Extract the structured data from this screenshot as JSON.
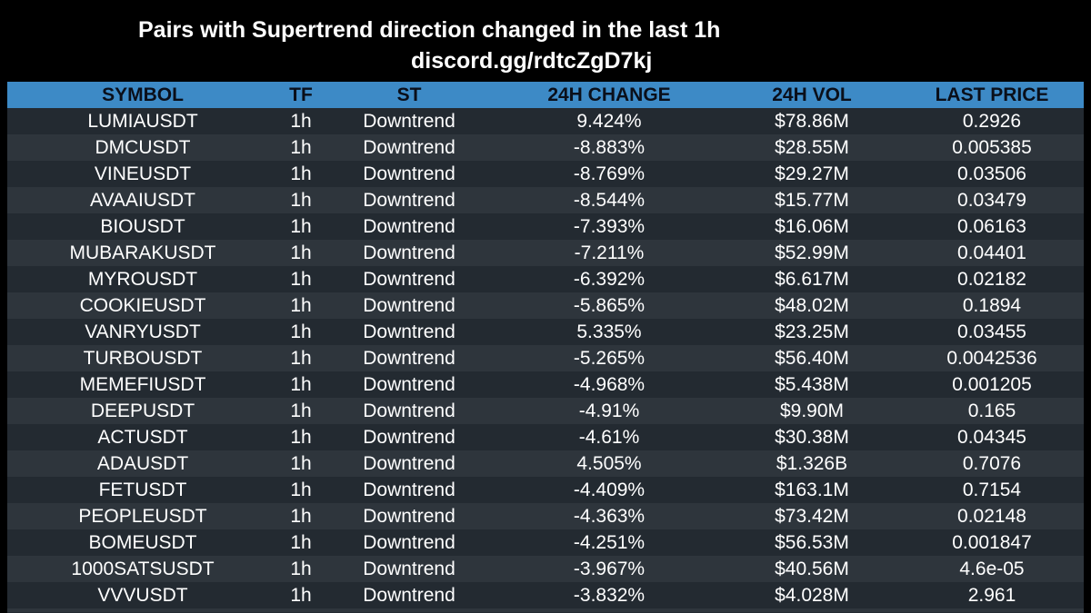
{
  "title": {
    "line1": "Pairs with Supertrend direction changed in the last 1h",
    "line2": "discord.gg/rdtcZgD7kj"
  },
  "colors": {
    "background": "#000000",
    "header_bg": "#3d8ac6",
    "row_even_bg": "#2e353c",
    "row_odd_bg": "#232a31",
    "text": "#ffffff"
  },
  "table": {
    "columns": [
      "SYMBOL",
      "TF",
      "ST",
      "24H CHANGE",
      "24H VOL",
      "LAST PRICE"
    ],
    "rows": [
      [
        "LUMIAUSDT",
        "1h",
        "Downtrend",
        "9.424%",
        "$78.86M",
        "0.2926"
      ],
      [
        "DMCUSDT",
        "1h",
        "Downtrend",
        "-8.883%",
        "$28.55M",
        "0.005385"
      ],
      [
        "VINEUSDT",
        "1h",
        "Downtrend",
        "-8.769%",
        "$29.27M",
        "0.03506"
      ],
      [
        "AVAAIUSDT",
        "1h",
        "Downtrend",
        "-8.544%",
        "$15.77M",
        "0.03479"
      ],
      [
        "BIOUSDT",
        "1h",
        "Downtrend",
        "-7.393%",
        "$16.06M",
        "0.06163"
      ],
      [
        "MUBARAKUSDT",
        "1h",
        "Downtrend",
        "-7.211%",
        "$52.99M",
        "0.04401"
      ],
      [
        "MYROUSDT",
        "1h",
        "Downtrend",
        "-6.392%",
        "$6.617M",
        "0.02182"
      ],
      [
        "COOKIEUSDT",
        "1h",
        "Downtrend",
        "-5.865%",
        "$48.02M",
        "0.1894"
      ],
      [
        "VANRYUSDT",
        "1h",
        "Downtrend",
        "5.335%",
        "$23.25M",
        "0.03455"
      ],
      [
        "TURBOUSDT",
        "1h",
        "Downtrend",
        "-5.265%",
        "$56.40M",
        "0.0042536"
      ],
      [
        "MEMEFIUSDT",
        "1h",
        "Downtrend",
        "-4.968%",
        "$5.438M",
        "0.001205"
      ],
      [
        "DEEPUSDT",
        "1h",
        "Downtrend",
        "-4.91%",
        "$9.90M",
        "0.165"
      ],
      [
        "ACTUSDT",
        "1h",
        "Downtrend",
        "-4.61%",
        "$30.38M",
        "0.04345"
      ],
      [
        "ADAUSDT",
        "1h",
        "Downtrend",
        "4.505%",
        "$1.326B",
        "0.7076"
      ],
      [
        "FETUSDT",
        "1h",
        "Downtrend",
        "-4.409%",
        "$163.1M",
        "0.7154"
      ],
      [
        "PEOPLEUSDT",
        "1h",
        "Downtrend",
        "-4.363%",
        "$73.42M",
        "0.02148"
      ],
      [
        "BOMEUSDT",
        "1h",
        "Downtrend",
        "-4.251%",
        "$56.53M",
        "0.001847"
      ],
      [
        "1000SATSUSDT",
        "1h",
        "Downtrend",
        "-3.967%",
        "$40.56M",
        "4.6e-05"
      ],
      [
        "VVVUSDT",
        "1h",
        "Downtrend",
        "-3.832%",
        "$4.028M",
        "2.961"
      ]
    ]
  }
}
